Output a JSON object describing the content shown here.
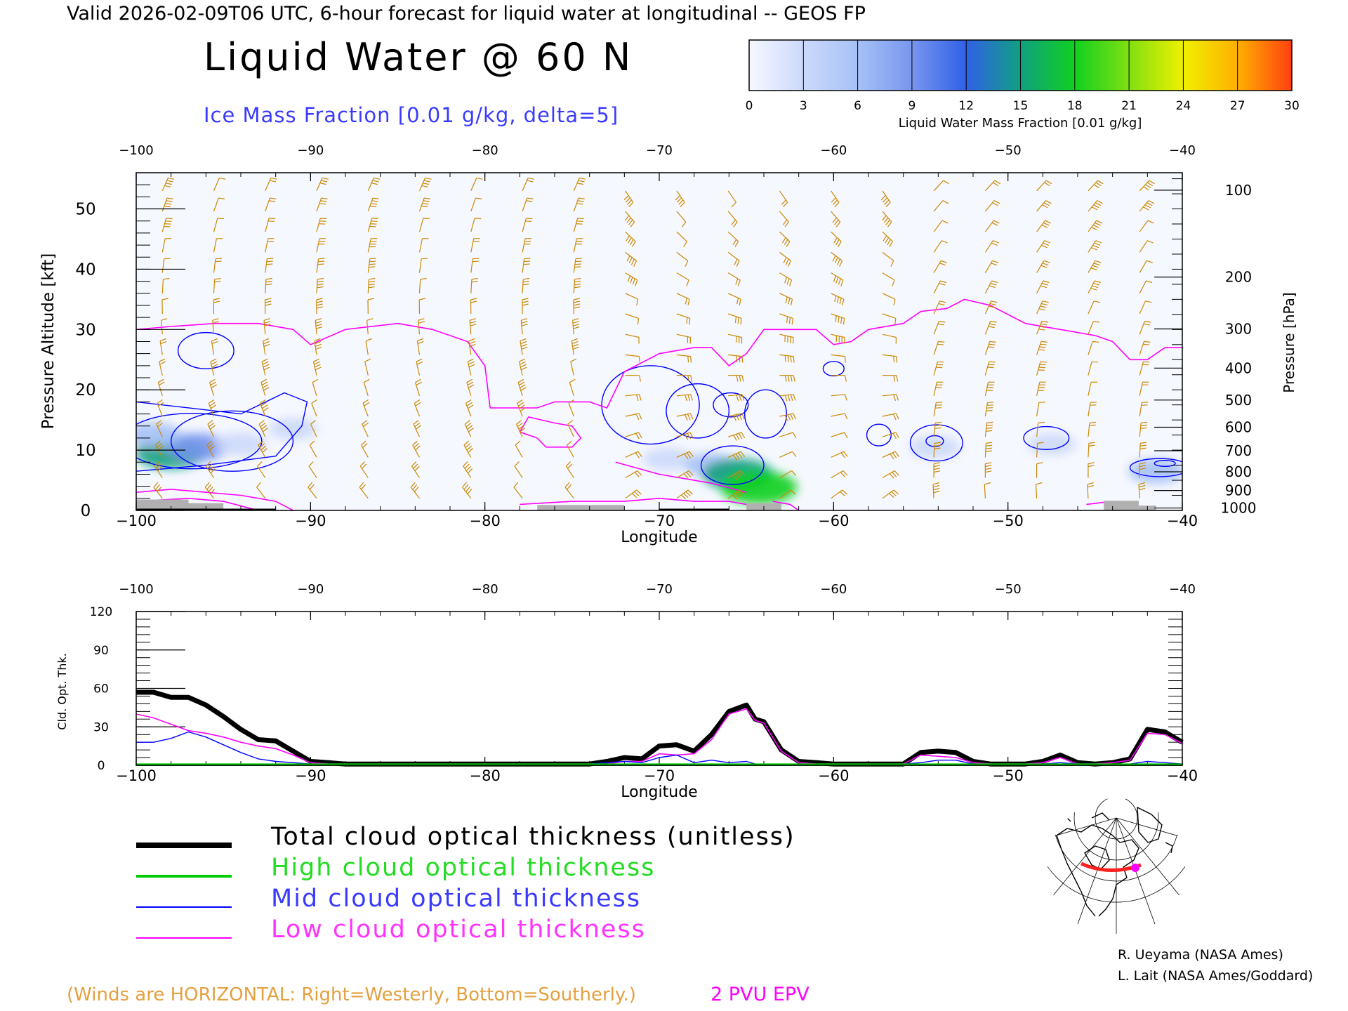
{
  "header": {
    "valid_line": "Valid 2026-02-09T06 UTC, 6-hour forecast for liquid water at longitudinal -- GEOS FP",
    "title": "Liquid Water @ 60 N",
    "subtitle": "Ice Mass Fraction [0.01 g/kg, delta=5]"
  },
  "colorbar": {
    "ticks": [
      "0",
      "3",
      "6",
      "9",
      "12",
      "15",
      "18",
      "21",
      "24",
      "27",
      "30"
    ],
    "label": "Liquid Water Mass Fraction [0.01 g/kg]",
    "colors": [
      "#f6f8ff",
      "#ccd9fb",
      "#a6c1f7",
      "#7896ee",
      "#3060e8",
      "#10a080",
      "#10d020",
      "#80e010",
      "#f0f000",
      "#ffb000",
      "#ff4010"
    ]
  },
  "colors": {
    "tropopause_epv": "#ff00ff",
    "wind_barbs": "#cc8800",
    "ice_contours": "#0000ff",
    "total": "#000000",
    "high": "#00cc00",
    "mid": "#0000ff",
    "low": "#ff00ff",
    "terrain": "#b0b0b0",
    "field_background": "#f6f8ff"
  },
  "legend": {
    "total": "Total cloud optical thickness (unitless)",
    "high": "High cloud optical thickness",
    "mid": "Mid cloud optical thickness",
    "low": "Low cloud optical thickness"
  },
  "footer": {
    "winds_note": "(Winds are HORIZONTAL: Right=Westerly, Bottom=Southerly.)",
    "epv_label": "2 PVU EPV",
    "credit1": "R. Ueyama (NASA Ames)",
    "credit2": "L. Lait (NASA Ames/Goddard)"
  },
  "chart_data": [
    {
      "type": "heatmap",
      "title": "Liquid Water @ 60 N",
      "xlabel": "Longitude",
      "ylabel": "Pressure Altitude [kft]",
      "y2label": "Pressure [hPa]",
      "xlim": [
        -100,
        -40
      ],
      "ylim": [
        0,
        56
      ],
      "xticks": [
        -100,
        -90,
        -80,
        -70,
        -60,
        -50,
        -40
      ],
      "yticks": [
        0,
        10,
        20,
        30,
        40,
        50
      ],
      "pressure_ticks": [
        {
          "hPa": "100",
          "kft": 53.1
        },
        {
          "hPa": "200",
          "kft": 38.7
        },
        {
          "hPa": "300",
          "kft": 30.1
        },
        {
          "hPa": "400",
          "kft": 23.6
        },
        {
          "hPa": "500",
          "kft": 18.3
        },
        {
          "hPa": "600",
          "kft": 13.8
        },
        {
          "hPa": "700",
          "kft": 9.9
        },
        {
          "hPa": "800",
          "kft": 6.4
        },
        {
          "hPa": "900",
          "kft": 3.3
        },
        {
          "hPa": "1000",
          "kft": 0.4
        }
      ],
      "liquid_water_blobs": [
        {
          "lon": -98,
          "kft": 9.5,
          "value": 15
        },
        {
          "lon": -96.5,
          "kft": 10.5,
          "value": 10
        },
        {
          "lon": -99,
          "kft": 12.5,
          "value": 6
        },
        {
          "lon": -94,
          "kft": 11,
          "value": 4
        },
        {
          "lon": -91,
          "kft": 13.5,
          "value": 2
        },
        {
          "lon": -69.5,
          "kft": 8.5,
          "value": 3
        },
        {
          "lon": -67,
          "kft": 7.5,
          "value": 5
        },
        {
          "lon": -65.5,
          "kft": 6,
          "value": 15
        },
        {
          "lon": -64.3,
          "kft": 3.8,
          "value": 18
        },
        {
          "lon": -54.2,
          "kft": 10.5,
          "value": 3
        },
        {
          "lon": -47.5,
          "kft": 11,
          "value": 2
        },
        {
          "lon": -41.5,
          "kft": 6.5,
          "value": 6
        }
      ],
      "epv_2pvu": [
        {
          "x": [
            -100,
            -98,
            -95.5,
            -93,
            -91,
            -90,
            -88,
            -85,
            -83,
            -81,
            -80,
            -79.7,
            -77,
            -76,
            -74,
            -73,
            -72,
            -70,
            -68,
            -67,
            -66,
            -65,
            -64,
            -63,
            -61,
            -60,
            -59,
            -58,
            -56,
            -55,
            -53.5,
            -52.5,
            -51,
            -49,
            -47,
            -45,
            -44,
            -43,
            -42,
            -41,
            -40
          ],
          "y": [
            30,
            30.5,
            31,
            31,
            30,
            27.5,
            30,
            31,
            30,
            28,
            24,
            17,
            17,
            18,
            18,
            17,
            23,
            26,
            27,
            27,
            24,
            26,
            30,
            30,
            30,
            27.5,
            28,
            30,
            31,
            33,
            33.5,
            35,
            34,
            31,
            30,
            29,
            28,
            25,
            25,
            27,
            27
          ]
        },
        {
          "x": [
            -78,
            -77.5,
            -76,
            -75,
            -74.5,
            -75,
            -76.5,
            -77,
            -78
          ],
          "y": [
            13,
            15.5,
            14.5,
            14,
            12,
            10.5,
            10.5,
            12,
            13
          ]
        },
        {
          "x": [
            -72.5,
            -70,
            -67,
            -65
          ],
          "y": [
            8,
            6,
            4.5,
            3
          ]
        },
        {
          "x": [
            -100,
            -98,
            -96,
            -94,
            -92,
            -91
          ],
          "y": [
            3,
            3.5,
            3,
            2.5,
            1.5,
            0
          ]
        },
        {
          "x": [
            -100,
            -97,
            -95,
            -93
          ],
          "y": [
            1.5,
            2,
            1.5,
            0
          ]
        },
        {
          "x": [
            -78,
            -75,
            -72,
            -70,
            -68,
            -66,
            -65
          ],
          "y": [
            1,
            1.5,
            1.5,
            2,
            1.5,
            1.5,
            1
          ]
        },
        {
          "x": [
            -63.5,
            -62.5,
            -62
          ],
          "y": [
            1.5,
            1,
            0
          ]
        },
        {
          "x": [
            -45.5,
            -44
          ],
          "y": [
            1,
            1.5
          ]
        }
      ],
      "terrain": [
        {
          "x1": -100,
          "x2": -97,
          "kft": 1.8
        },
        {
          "x1": -97,
          "x2": -95,
          "kft": 1.2
        },
        {
          "x1": -77,
          "x2": -72,
          "kft": 0.9
        },
        {
          "x1": -65,
          "x2": -63,
          "kft": 1.2
        },
        {
          "x1": -44.5,
          "x2": -42.5,
          "kft": 1.6
        },
        {
          "x1": -42.5,
          "x2": -41.5,
          "kft": 0.8
        }
      ]
    },
    {
      "type": "line",
      "xlabel": "Longitude",
      "ylabel": "Cld. Opt. Thk.",
      "xlim": [
        -100,
        -40
      ],
      "ylim": [
        0,
        120
      ],
      "yticks": [
        0,
        30,
        60,
        90,
        120
      ],
      "x": [
        -100,
        -99,
        -98,
        -97,
        -96,
        -95,
        -94,
        -93,
        -92,
        -91,
        -90,
        -89,
        -88,
        -87,
        -86,
        -85,
        -84,
        -83,
        -82,
        -81,
        -80,
        -79,
        -78,
        -77,
        -76,
        -75,
        -74,
        -73,
        -72,
        -71,
        -70,
        -69,
        -68,
        -67,
        -66,
        -65,
        -64.5,
        -64,
        -63,
        -62,
        -61,
        -60,
        -59,
        -58,
        -57,
        -56,
        -55,
        -54,
        -53,
        -52,
        -51,
        -50,
        -49,
        -48,
        -47,
        -46,
        -45,
        -44,
        -43,
        -42,
        -41,
        -40
      ],
      "series": [
        {
          "name": "Total cloud optical thickness (unitless)",
          "key": "total",
          "values": [
            57,
            57,
            53,
            53,
            47,
            38,
            28,
            20,
            19,
            11,
            3,
            2,
            1,
            1,
            1,
            1,
            1,
            1,
            1,
            1,
            1,
            1,
            1,
            1,
            1,
            1,
            1,
            3,
            6,
            5,
            15,
            16,
            11,
            24,
            42,
            47,
            36,
            34,
            12,
            3,
            2,
            1,
            1,
            1,
            1,
            1,
            10,
            11,
            10,
            3,
            1,
            1,
            1,
            3,
            8,
            2,
            1,
            2,
            5,
            28,
            26,
            18
          ]
        },
        {
          "name": "High cloud optical thickness",
          "key": "high",
          "values": [
            0.5,
            0.5,
            0.5,
            0.5,
            0.5,
            0.5,
            0.5,
            0.5,
            0.5,
            0.5,
            0.5,
            0.5,
            0.5,
            0.5,
            0.5,
            0.5,
            0.5,
            0.5,
            0.5,
            0.5,
            0.5,
            0.5,
            0.5,
            0.5,
            0.5,
            0.5,
            0.5,
            0.5,
            0.5,
            0.5,
            0.5,
            0.5,
            0.5,
            0.5,
            0.5,
            0.5,
            0.5,
            0.5,
            0.5,
            0.5,
            0.5,
            0.5,
            0.5,
            0.5,
            0.5,
            0.5,
            0.5,
            0.5,
            0.5,
            0.5,
            0.5,
            0.5,
            0.5,
            0.5,
            0.5,
            0.5,
            0.5,
            0.5,
            0.5,
            0.5,
            0.5,
            0.5
          ]
        },
        {
          "name": "Mid cloud optical thickness",
          "key": "mid",
          "values": [
            18,
            18,
            21,
            26,
            22,
            16,
            10,
            5,
            3,
            2,
            1,
            1,
            1,
            1,
            1,
            1,
            1,
            1,
            1,
            1,
            1,
            1,
            1,
            1,
            1,
            1,
            1,
            2,
            3,
            2,
            6,
            8,
            2,
            4,
            2,
            3,
            1,
            1,
            1,
            1,
            1,
            1,
            1,
            1,
            1,
            1,
            2,
            4,
            4,
            1,
            1,
            1,
            1,
            1,
            2,
            1,
            1,
            1,
            1,
            3,
            2,
            1
          ]
        },
        {
          "name": "Low cloud optical thickness",
          "key": "low",
          "values": [
            40,
            37,
            32,
            27,
            25,
            22,
            18,
            15,
            13,
            8,
            2,
            1,
            1,
            1,
            1,
            1,
            1,
            1,
            1,
            1,
            1,
            1,
            1,
            1,
            1,
            1,
            1,
            1,
            3,
            3,
            9,
            8,
            9,
            20,
            40,
            44,
            35,
            33,
            11,
            2,
            1,
            1,
            1,
            1,
            1,
            1,
            8,
            7,
            6,
            2,
            1,
            1,
            1,
            2,
            6,
            1,
            1,
            2,
            4,
            25,
            24,
            17
          ]
        }
      ]
    }
  ]
}
